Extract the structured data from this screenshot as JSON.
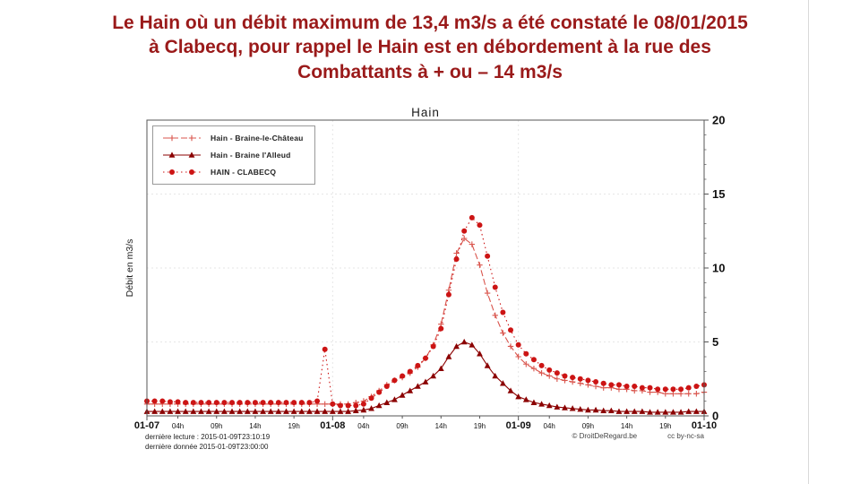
{
  "heading": {
    "lines": [
      "Le Hain où un débit maximum de 13,4 m3/s a été constaté le 08/01/2015",
      "à Clabecq, pour rappel le Hain est en débordement à la rue des",
      "Combattants à + ou – 14 m3/s"
    ],
    "color": "#9a1a1a"
  },
  "chart_data": {
    "type": "line",
    "title": "Hain",
    "ylabel": "Débit en m3/s",
    "xlim": [
      0,
      72
    ],
    "ylim": [
      0,
      20
    ],
    "grid": true,
    "legend_position": "top-left",
    "y_ticks": [
      0,
      5,
      10,
      15,
      20
    ],
    "x_ticks": [
      {
        "pos": 0,
        "label": "01-07",
        "major": true
      },
      {
        "pos": 4,
        "label": "04h",
        "major": false
      },
      {
        "pos": 9,
        "label": "09h",
        "major": false
      },
      {
        "pos": 14,
        "label": "14h",
        "major": false
      },
      {
        "pos": 19,
        "label": "19h",
        "major": false
      },
      {
        "pos": 24,
        "label": "01-08",
        "major": true
      },
      {
        "pos": 28,
        "label": "04h",
        "major": false
      },
      {
        "pos": 33,
        "label": "09h",
        "major": false
      },
      {
        "pos": 38,
        "label": "14h",
        "major": false
      },
      {
        "pos": 43,
        "label": "19h",
        "major": false
      },
      {
        "pos": 48,
        "label": "01-09",
        "major": true
      },
      {
        "pos": 52,
        "label": "04h",
        "major": false
      },
      {
        "pos": 57,
        "label": "09h",
        "major": false
      },
      {
        "pos": 62,
        "label": "14h",
        "major": false
      },
      {
        "pos": 67,
        "label": "19h",
        "major": false
      },
      {
        "pos": 72,
        "label": "01-10",
        "major": true
      }
    ],
    "x": [
      0,
      1,
      2,
      3,
      4,
      5,
      6,
      7,
      8,
      9,
      10,
      11,
      12,
      13,
      14,
      15,
      16,
      17,
      18,
      19,
      20,
      21,
      22,
      23,
      24,
      25,
      26,
      27,
      28,
      29,
      30,
      31,
      32,
      33,
      34,
      35,
      36,
      37,
      38,
      39,
      40,
      41,
      42,
      43,
      44,
      45,
      46,
      47,
      48,
      49,
      50,
      51,
      52,
      53,
      54,
      55,
      56,
      57,
      58,
      59,
      60,
      61,
      62,
      63,
      64,
      65,
      66,
      67,
      68,
      69,
      70,
      71,
      72
    ],
    "series": [
      {
        "name": "Hain - Braine-le-Château",
        "color": "#d9544c",
        "marker": "plus",
        "dash": "7,3",
        "values": [
          0.8,
          0.8,
          0.8,
          0.8,
          0.8,
          0.8,
          0.8,
          0.8,
          0.8,
          0.8,
          0.8,
          0.8,
          0.8,
          0.8,
          0.8,
          0.8,
          0.8,
          0.8,
          0.8,
          0.8,
          0.8,
          0.8,
          0.8,
          0.8,
          0.8,
          0.8,
          0.8,
          0.9,
          1.0,
          1.3,
          1.7,
          2.1,
          2.4,
          2.6,
          2.9,
          3.3,
          3.9,
          4.8,
          6.2,
          8.5,
          11.0,
          12.0,
          11.6,
          10.2,
          8.3,
          6.8,
          5.6,
          4.7,
          4.0,
          3.5,
          3.2,
          2.9,
          2.7,
          2.5,
          2.4,
          2.3,
          2.2,
          2.1,
          2.0,
          1.9,
          1.9,
          1.8,
          1.8,
          1.7,
          1.7,
          1.6,
          1.6,
          1.5,
          1.5,
          1.5,
          1.5,
          1.5,
          1.6
        ]
      },
      {
        "name": "Hain - Braine l'Alleud",
        "color": "#8b0000",
        "marker": "triangle",
        "dash": "",
        "values": [
          0.3,
          0.3,
          0.3,
          0.3,
          0.3,
          0.3,
          0.3,
          0.3,
          0.3,
          0.3,
          0.3,
          0.3,
          0.3,
          0.3,
          0.3,
          0.3,
          0.3,
          0.3,
          0.3,
          0.3,
          0.3,
          0.3,
          0.3,
          0.3,
          0.3,
          0.3,
          0.3,
          0.35,
          0.4,
          0.5,
          0.7,
          0.9,
          1.1,
          1.4,
          1.7,
          2.0,
          2.3,
          2.7,
          3.2,
          4.0,
          4.7,
          5.0,
          4.8,
          4.2,
          3.4,
          2.7,
          2.2,
          1.7,
          1.3,
          1.1,
          0.9,
          0.8,
          0.7,
          0.6,
          0.55,
          0.5,
          0.45,
          0.4,
          0.4,
          0.35,
          0.35,
          0.3,
          0.3,
          0.3,
          0.3,
          0.25,
          0.25,
          0.25,
          0.25,
          0.25,
          0.3,
          0.3,
          0.3
        ]
      },
      {
        "name": "HAIN - CLABECQ",
        "color": "#cc1414",
        "marker": "circle",
        "dash": "1.5,3.5",
        "values": [
          1.0,
          1.0,
          1.0,
          0.95,
          0.95,
          0.9,
          0.9,
          0.9,
          0.9,
          0.9,
          0.9,
          0.9,
          0.9,
          0.9,
          0.9,
          0.9,
          0.9,
          0.9,
          0.9,
          0.9,
          0.9,
          0.9,
          1.0,
          4.5,
          0.8,
          0.7,
          0.7,
          0.7,
          0.8,
          1.2,
          1.6,
          2.0,
          2.4,
          2.7,
          3.0,
          3.4,
          3.9,
          4.7,
          5.9,
          8.2,
          10.6,
          12.5,
          13.4,
          12.9,
          10.8,
          8.7,
          7.0,
          5.8,
          4.8,
          4.2,
          3.8,
          3.4,
          3.1,
          2.9,
          2.7,
          2.6,
          2.5,
          2.4,
          2.3,
          2.2,
          2.1,
          2.1,
          2.0,
          2.0,
          1.9,
          1.9,
          1.8,
          1.8,
          1.8,
          1.8,
          1.9,
          2.0,
          2.1
        ]
      }
    ],
    "footer": {
      "left_line1": "dernière lecture : 2015-01-09T23:10:19",
      "left_line2": "dernière donnée  2015-01-09T23:00:00",
      "right_copyright": "© DroitDeRegard.be",
      "right_license": "cc by-nc-sa"
    }
  }
}
